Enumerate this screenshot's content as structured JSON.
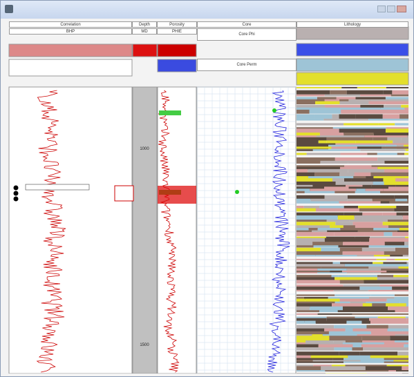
{
  "window": {
    "tracks": [
      {
        "title": "Correlation",
        "curve": "BHP"
      },
      {
        "title": "Depth",
        "curve": "MD"
      },
      {
        "title": "Porosity",
        "curve": "PHIE"
      },
      {
        "title": "Core",
        "curve": "Core Phi",
        "curve2": "Core Perm"
      },
      {
        "title": "Lithology"
      }
    ],
    "depth_labels": [
      "1000",
      "1500"
    ]
  }
}
